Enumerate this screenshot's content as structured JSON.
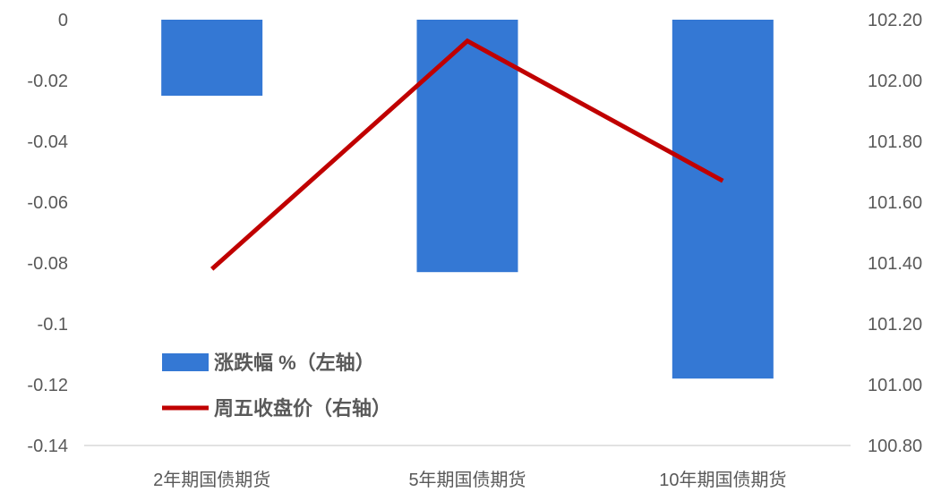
{
  "chart_data": {
    "type": "bar",
    "categories": [
      "2年期国债期货",
      "5年期国债期货",
      "10年期国债期货"
    ],
    "series": [
      {
        "name": "涨跌幅 %（左轴）",
        "type": "bar",
        "axis": "left",
        "values": [
          -0.025,
          -0.083,
          -0.118
        ],
        "color": "#3478D4"
      },
      {
        "name": "周五收盘价（右轴）",
        "type": "line",
        "axis": "right",
        "values": [
          101.38,
          102.13,
          101.67
        ],
        "color": "#C00000"
      }
    ],
    "y_left": {
      "ylim": [
        -0.14,
        0
      ],
      "ticks": [
        "0",
        "-0.02",
        "-0.04",
        "-0.06",
        "-0.08",
        "-0.1",
        "-0.12",
        "-0.14"
      ]
    },
    "y_right": {
      "ylim": [
        100.8,
        102.2
      ],
      "ticks": [
        "102.20",
        "102.00",
        "101.80",
        "101.60",
        "101.40",
        "101.20",
        "101.00",
        "100.80"
      ]
    },
    "grid": false,
    "legend": "bottom-left"
  }
}
